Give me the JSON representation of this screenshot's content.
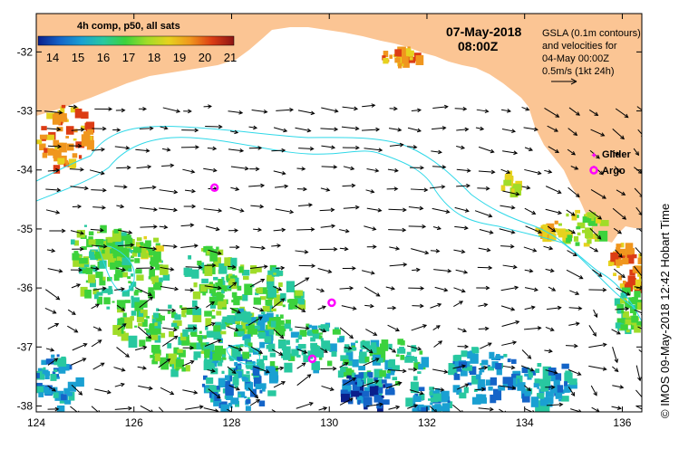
{
  "map": {
    "title_date": "07-May-2018",
    "title_time": "08:00Z",
    "lon_ticks": [
      "124",
      "126",
      "128",
      "130",
      "132",
      "134",
      "136"
    ],
    "lat_ticks": [
      "-32",
      "-33",
      "-34",
      "-35",
      "-36",
      "-37",
      "-38"
    ],
    "land_color": "#fbc594",
    "contour_color": "#2fd8e8",
    "arrow_color": "#000000"
  },
  "colorbar": {
    "title": "4h comp, p50, all sats",
    "ticks": [
      "14",
      "15",
      "16",
      "17",
      "18",
      "19",
      "20",
      "21"
    ],
    "colors": [
      "#0a1f8c",
      "#1464c8",
      "#1aa0d2",
      "#28c8a0",
      "#3cd23c",
      "#a0dc28",
      "#e6d21e",
      "#f0961e",
      "#dc3c14",
      "#8c1414"
    ]
  },
  "info": {
    "line1": "GSLA (0.1m contours)",
    "line2": "and velocities for",
    "line3": "04-May 00:00Z",
    "line4": "0.5m/s (1kt 24h)"
  },
  "legend": {
    "glider_label": "Glider",
    "argo_label": "Argo",
    "glider_color": "#ff00ff",
    "argo_color": "#ff00ff"
  },
  "argo_floats": [
    {
      "lon": 127.65,
      "lat": -34.3
    },
    {
      "lon": 130.05,
      "lat": -36.25
    },
    {
      "lon": 129.65,
      "lat": -37.2
    }
  ],
  "credit": "© IMOS 09-May-2018 12:42 Hobart Time"
}
